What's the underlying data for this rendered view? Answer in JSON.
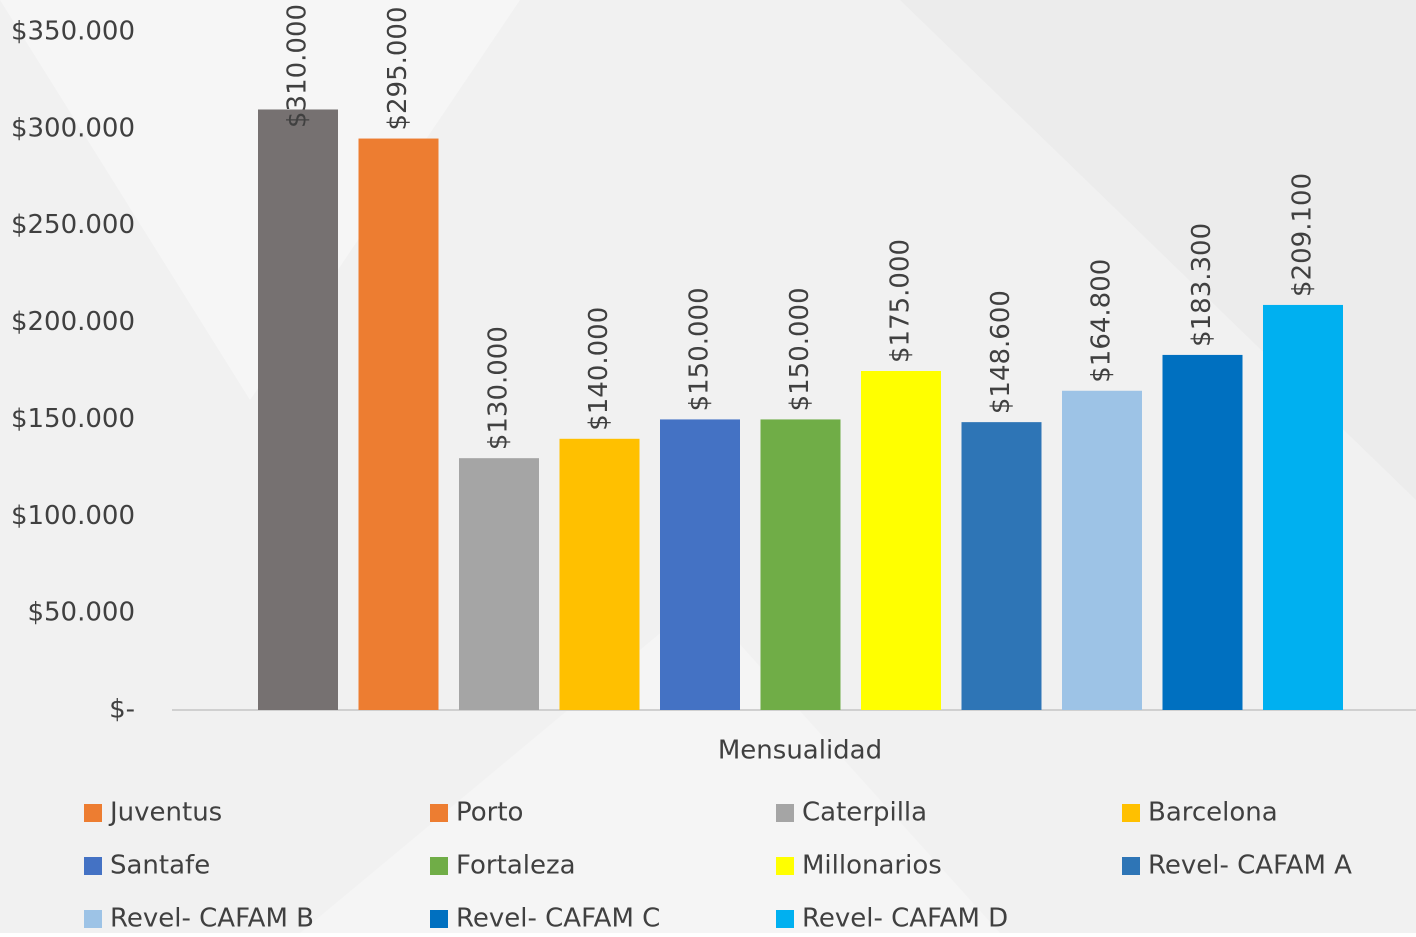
{
  "chart_data": {
    "type": "bar",
    "categories": [
      "Mensualidad"
    ],
    "series": [
      {
        "name": "Juventus",
        "color": "#767171",
        "legend_color": "#ED7D31",
        "values": [
          310000
        ],
        "value_labels": [
          "$310.000"
        ]
      },
      {
        "name": "Porto",
        "color": "#ED7D31",
        "values": [
          295000
        ],
        "value_labels": [
          "$295.000"
        ]
      },
      {
        "name": "Caterpilla",
        "color": "#A5A5A5",
        "values": [
          130000
        ],
        "value_labels": [
          "$130.000"
        ]
      },
      {
        "name": "Barcelona",
        "color": "#FFC000",
        "values": [
          140000
        ],
        "value_labels": [
          "$140.000"
        ]
      },
      {
        "name": "Santafe",
        "color": "#4472C4",
        "values": [
          150000
        ],
        "value_labels": [
          "$150.000"
        ]
      },
      {
        "name": "Fortaleza",
        "color": "#70AD47",
        "values": [
          150000
        ],
        "value_labels": [
          "$150.000"
        ]
      },
      {
        "name": "Millonarios",
        "color": "#FFFF00",
        "values": [
          175000
        ],
        "value_labels": [
          "$175.000"
        ]
      },
      {
        "name": "Revel- CAFAM A",
        "color": "#2E75B6",
        "values": [
          148600
        ],
        "value_labels": [
          "$148.600"
        ]
      },
      {
        "name": "Revel- CAFAM B",
        "color": "#9DC3E6",
        "values": [
          164800
        ],
        "value_labels": [
          "$164.800"
        ]
      },
      {
        "name": "Revel- CAFAM C",
        "color": "#0070C0",
        "values": [
          183300
        ],
        "value_labels": [
          "$183.300"
        ]
      },
      {
        "name": "Revel- CAFAM D",
        "color": "#00B0F0",
        "values": [
          209100
        ],
        "value_labels": [
          "$209.100"
        ]
      }
    ],
    "ylim": [
      0,
      350000
    ],
    "yticks": [
      {
        "value": 0,
        "label": "$-"
      },
      {
        "value": 50000,
        "label": "$50.000"
      },
      {
        "value": 100000,
        "label": "$100.000"
      },
      {
        "value": 150000,
        "label": "$150.000"
      },
      {
        "value": 200000,
        "label": "$200.000"
      },
      {
        "value": 250000,
        "label": "$250.000"
      },
      {
        "value": 300000,
        "label": "$300.000"
      },
      {
        "value": 350000,
        "label": "$350.000"
      }
    ],
    "grid": false,
    "legend": "bottom"
  }
}
